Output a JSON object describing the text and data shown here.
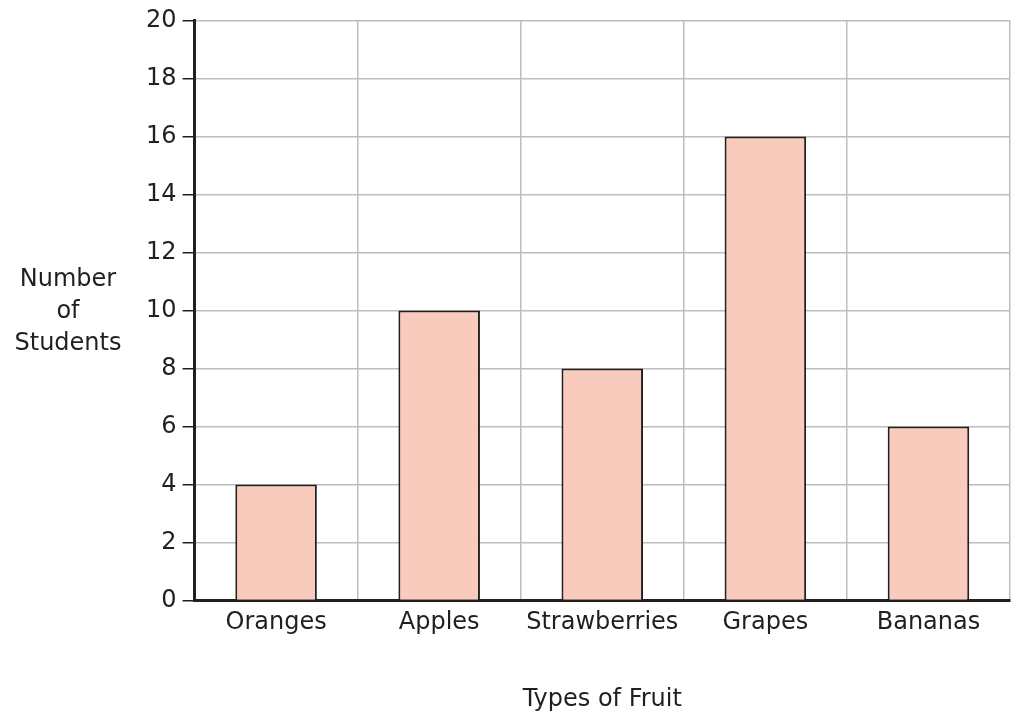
{
  "chart_data": {
    "type": "bar",
    "xlabel": "Types of Fruit",
    "ylabel": "Number of Students",
    "categories": [
      "Oranges",
      "Apples",
      "Strawberries",
      "Grapes",
      "Bananas"
    ],
    "values": [
      4,
      10,
      8,
      16,
      6
    ],
    "color": "#f9cbbd",
    "ylim": [
      0,
      20
    ],
    "yticks": [
      0,
      2,
      4,
      6,
      8,
      10,
      12,
      14,
      16,
      18,
      20
    ],
    "grid": true,
    "legend": false
  }
}
